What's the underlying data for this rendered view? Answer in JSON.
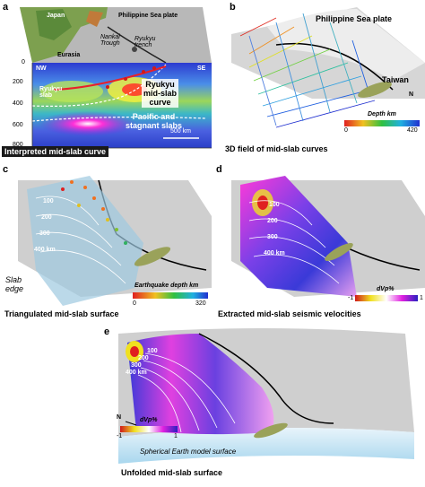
{
  "panel_a": {
    "letter": "a",
    "labels": {
      "japan": "Japan",
      "eurasia": "Eurasia",
      "nankai": "Nankai\nTrough",
      "ryukyu_trench": "Ryukyu\ntrench",
      "philippine": "Philippine Sea plate",
      "nw": "NW",
      "se": "SE",
      "ryukyu_slab": "Ryukyu\nslab",
      "mid_slab_curve": "Ryukyu\nmid-slab\ncurve",
      "pacific": "Pacific and\nstagnant slabs",
      "scale": "500 km"
    },
    "depth_ticks": [
      "0",
      "200",
      "400",
      "600",
      "800"
    ],
    "depth_unit": "km",
    "caption": "Interpreted mid-slab curve"
  },
  "panel_b": {
    "letter": "b",
    "labels": {
      "philippine": "Philippine Sea plate",
      "taiwan": "Taiwan",
      "north": "N"
    },
    "colorbar": {
      "title": "Depth km",
      "min": "0",
      "max": "420"
    },
    "caption": "3D field of mid-slab curves"
  },
  "panel_c": {
    "letter": "c",
    "contours": [
      "100",
      "200",
      "300",
      "400 km"
    ],
    "slab_edge": "Slab\nedge",
    "colorbar": {
      "title": "Earthquake depth km",
      "min": "0",
      "max": "320"
    },
    "caption": "Triangulated mid-slab surface"
  },
  "panel_d": {
    "letter": "d",
    "contours": [
      "100",
      "200",
      "300",
      "400 km"
    ],
    "colorbar": {
      "title": "dVp%",
      "min": "-1",
      "max": "1"
    },
    "caption": "Extracted mid-slab seismic velocities"
  },
  "panel_e": {
    "letter": "e",
    "contours": [
      "100",
      "200",
      "300",
      "400 km"
    ],
    "north": "N",
    "colorbar": {
      "title": "dVp%",
      "min": "-1",
      "max": "1"
    },
    "sphere_label": "Spherical Earth model surface",
    "caption": "Unfolded mid-slab surface"
  },
  "colors": {
    "land": "#6e9a4a",
    "sea_gray": "#c9c9c9",
    "slow": "#d11a1a",
    "fast": "#3a2fd6",
    "black_box": "#1a1a1a"
  }
}
